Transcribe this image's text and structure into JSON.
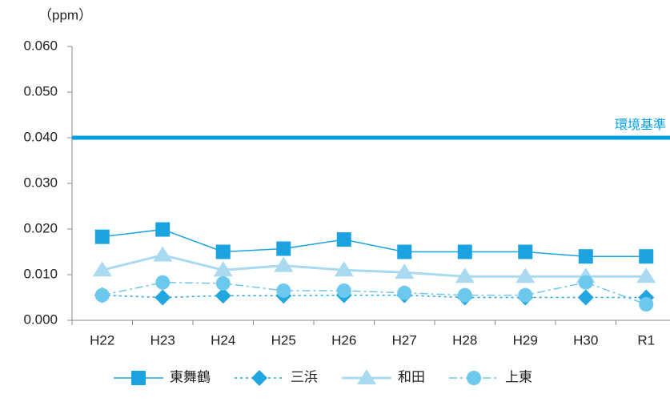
{
  "chart_data": {
    "type": "line",
    "y_label": "（ppm）",
    "categories": [
      "H22",
      "H23",
      "H24",
      "H25",
      "H26",
      "H27",
      "H28",
      "H29",
      "H30",
      "R1"
    ],
    "ylim": [
      0,
      0.06
    ],
    "yticks": [
      {
        "value": 0,
        "label": "0.000"
      },
      {
        "value": 0.01,
        "label": "0.010"
      },
      {
        "value": 0.02,
        "label": "0.020"
      },
      {
        "value": 0.03,
        "label": "0.030"
      },
      {
        "value": 0.04,
        "label": "0.040"
      },
      {
        "value": 0.05,
        "label": "0.050"
      },
      {
        "value": 0.06,
        "label": "0.060"
      }
    ],
    "reference_line": {
      "value": 0.04,
      "label": "環境基準",
      "color": "#00a0e0"
    },
    "legend": "bottom",
    "series": [
      {
        "name": "東舞鶴",
        "color": "#1aa3e0",
        "marker": "square",
        "dash": "solid",
        "values": [
          0.0183,
          0.0199,
          0.015,
          0.0157,
          0.0177,
          0.015,
          0.015,
          0.015,
          0.014,
          0.014
        ]
      },
      {
        "name": "三浜",
        "color": "#22a6df",
        "marker": "diamond",
        "dash": "dotted",
        "values": [
          0.0055,
          0.005,
          0.0054,
          0.0054,
          0.0055,
          0.0055,
          0.005,
          0.005,
          0.005,
          0.005
        ]
      },
      {
        "name": "和田",
        "color": "#a9daf2",
        "marker": "triangle",
        "dash": "solid",
        "values": [
          0.011,
          0.0143,
          0.011,
          0.012,
          0.011,
          0.0105,
          0.0096,
          0.0096,
          0.0096,
          0.0096
        ]
      },
      {
        "name": "上東",
        "color": "#6cc8ec",
        "marker": "circle",
        "dash": "dashdot",
        "values": [
          0.0055,
          0.0083,
          0.0081,
          0.0065,
          0.0065,
          0.006,
          0.0055,
          0.0055,
          0.0083,
          0.0035
        ]
      }
    ]
  }
}
